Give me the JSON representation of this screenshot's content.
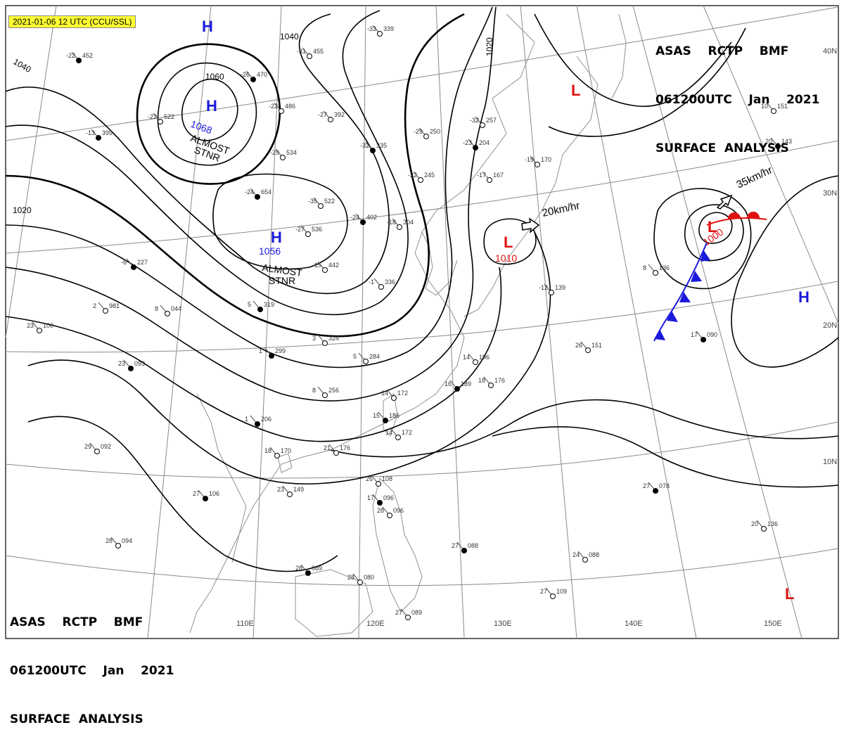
{
  "stamp": "2021-01-06 12 UTC (CCU/SSL)",
  "header_top": {
    "line1": "ASAS    RCTP    BMF",
    "line2": "061200UTC    Jan    2021",
    "line3": "SURFACE  ANALYSIS"
  },
  "header_bottom": {
    "line1": "ASAS    RCTP    BMF",
    "line2": "061200UTC    Jan    2021",
    "line3": "SURFACE  ANALYSIS"
  },
  "colors": {
    "high": "#1a1adc",
    "low": "#e01010",
    "cold_front": "#1a1adc",
    "warm_front": "#e01010",
    "isobar": "#000000",
    "grid": "#8a8a8a",
    "coast": "#909090"
  },
  "lat_labels": [
    "40N",
    "30N",
    "20N",
    "10N"
  ],
  "lon_labels": [
    "110E",
    "120E",
    "130E",
    "140E",
    "150E"
  ],
  "isobar_labels": [
    "1040",
    "1040",
    "1060",
    "1020",
    "1020"
  ],
  "pressure_centers": [
    {
      "type": "H",
      "value": "",
      "note": "",
      "note2": ""
    },
    {
      "type": "H",
      "value": "1068",
      "note": "ALMOST",
      "note2": "STNR"
    },
    {
      "type": "H",
      "value": "1056",
      "note": "ALMOST",
      "note2": "STNR"
    },
    {
      "type": "L",
      "value": "",
      "note": "",
      "note2": ""
    },
    {
      "type": "L",
      "value": "1010",
      "note": "",
      "note2": ""
    },
    {
      "type": "L",
      "value": "1000",
      "note": "",
      "note2": ""
    },
    {
      "type": "H",
      "value": "",
      "note": "",
      "note2": ""
    },
    {
      "type": "L",
      "value": "",
      "note": "",
      "note2": ""
    }
  ],
  "motions": [
    {
      "text": "20km/hr"
    },
    {
      "text": "35km/hr"
    }
  ],
  "stations": [
    {
      "t": "-22",
      "p": "452"
    },
    {
      "t": "-33",
      "p": "339"
    },
    {
      "t": "-31",
      "p": "455"
    },
    {
      "t": "-26",
      "p": "470"
    },
    {
      "t": "-22",
      "p": "486"
    },
    {
      "t": "-22",
      "p": "522"
    },
    {
      "t": "-13",
      "p": "399"
    },
    {
      "t": "-27",
      "p": "392"
    },
    {
      "t": "-29",
      "p": "250"
    },
    {
      "t": "-32",
      "p": "335"
    },
    {
      "t": "-29",
      "p": "534"
    },
    {
      "t": "-32",
      "p": "257"
    },
    {
      "t": "-23",
      "p": "204"
    },
    {
      "t": "-22",
      "p": "245"
    },
    {
      "t": "-17",
      "p": "167"
    },
    {
      "t": "-24",
      "p": "654"
    },
    {
      "t": "-35",
      "p": "522"
    },
    {
      "t": "-27",
      "p": "536"
    },
    {
      "t": "-24",
      "p": "402"
    },
    {
      "t": "-18",
      "p": "304"
    },
    {
      "t": "-15",
      "p": "442"
    },
    {
      "t": "-6",
      "p": "227"
    },
    {
      "t": "8",
      "p": "044"
    },
    {
      "t": "23",
      "p": "100"
    },
    {
      "t": "5",
      "p": "319"
    },
    {
      "t": "3",
      "p": "324"
    },
    {
      "t": "-1",
      "p": "336"
    },
    {
      "t": "1",
      "p": "299"
    },
    {
      "t": "5",
      "p": "284"
    },
    {
      "t": "8",
      "p": "256"
    },
    {
      "t": "23",
      "p": "093"
    },
    {
      "t": "2",
      "p": "981"
    },
    {
      "t": "14",
      "p": "172"
    },
    {
      "t": "16",
      "p": "189"
    },
    {
      "t": "18",
      "p": "176"
    },
    {
      "t": "14",
      "p": "196"
    },
    {
      "t": "1",
      "p": "206"
    },
    {
      "t": "18",
      "p": "170"
    },
    {
      "t": "21",
      "p": "176"
    },
    {
      "t": "15",
      "p": "186"
    },
    {
      "t": "14",
      "p": "172"
    },
    {
      "t": "29",
      "p": "092"
    },
    {
      "t": "27",
      "p": "106"
    },
    {
      "t": "23",
      "p": "149"
    },
    {
      "t": "26",
      "p": "108"
    },
    {
      "t": "17",
      "p": "096"
    },
    {
      "t": "28",
      "p": "096"
    },
    {
      "t": "28",
      "p": "094"
    },
    {
      "t": "28",
      "p": "089"
    },
    {
      "t": "28",
      "p": "080"
    },
    {
      "t": "27",
      "p": "089"
    },
    {
      "t": "27",
      "p": "088"
    },
    {
      "t": "24",
      "p": "088"
    },
    {
      "t": "27",
      "p": "109"
    },
    {
      "t": "27",
      "p": "078"
    },
    {
      "t": "20",
      "p": "136"
    },
    {
      "t": "26",
      "p": "151"
    },
    {
      "t": "17",
      "p": "090"
    },
    {
      "t": "8",
      "p": "136"
    },
    {
      "t": "10",
      "p": "151"
    },
    {
      "t": "20",
      "p": "143"
    },
    {
      "t": "-12",
      "p": "139"
    },
    {
      "t": "-19",
      "p": "170"
    }
  ]
}
